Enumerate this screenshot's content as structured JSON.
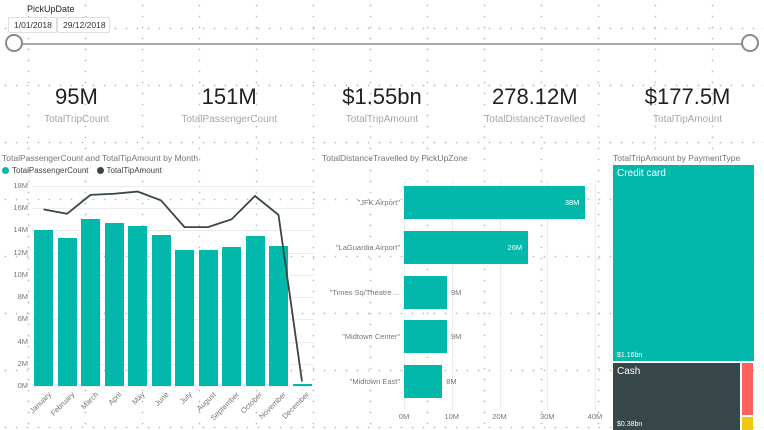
{
  "slicer": {
    "title": "PickUpDate",
    "start_date": "1/01/2018",
    "end_date": "29/12/2018"
  },
  "kpis": [
    {
      "value": "95M",
      "label": "TotalTripCount"
    },
    {
      "value": "151M",
      "label": "TotalPassengerCount"
    },
    {
      "value": "$1.55bn",
      "label": "TotalTripAmount"
    },
    {
      "value": "278.12M",
      "label": "TotalDistanceTravelled"
    },
    {
      "value": "$177.5M",
      "label": "TotalTipAmount"
    }
  ],
  "colors": {
    "teal": "#01B8AA",
    "dark": "#374649",
    "red": "#FD625E",
    "yellow": "#F2C80F"
  },
  "chart_data": [
    {
      "type": "combo-bar-line",
      "title": "TotalPassengerCount and TotalTipAmount by Month",
      "categories": [
        "January",
        "February",
        "March",
        "April",
        "May",
        "June",
        "July",
        "August",
        "September",
        "October",
        "November",
        "December"
      ],
      "series": [
        {
          "name": "TotalPassengerCount",
          "type": "bar",
          "color": "#01B8AA",
          "values": [
            14.0,
            13.3,
            15.0,
            14.7,
            14.4,
            13.6,
            12.2,
            12.2,
            12.5,
            13.5,
            12.6,
            0.2
          ]
        },
        {
          "name": "TotalTipAmount",
          "type": "line",
          "color": "#374649",
          "values": [
            15.9,
            15.5,
            17.2,
            17.3,
            17.5,
            16.7,
            14.3,
            14.3,
            15.0,
            17.1,
            15.4,
            0.4
          ]
        }
      ],
      "y_ticks": [
        "18M",
        "16M",
        "14M",
        "12M",
        "10M",
        "8M",
        "6M",
        "4M",
        "2M",
        "0M"
      ],
      "ylim": [
        0,
        18
      ],
      "value_unit": "M",
      "legend_position": "top"
    },
    {
      "type": "bar",
      "title": "TotalDistanceTravelled by PickUpZone",
      "categories": [
        "\"JFK Airport\"",
        "\"LaGuardia Airport\"",
        "\"Times Sq/Theatre ...",
        "\"Midtown Center\"",
        "\"Midtown East\""
      ],
      "values": [
        38,
        26,
        9,
        9,
        8
      ],
      "value_labels": [
        "38M",
        "26M",
        "9M",
        "9M",
        "8M"
      ],
      "x_ticks": [
        "0M",
        "10M",
        "20M",
        "30M",
        "40M"
      ],
      "xlim": [
        0,
        40
      ],
      "orientation": "horizontal"
    },
    {
      "type": "treemap",
      "title": "TotalTripAmount by PaymentType",
      "segments": [
        {
          "label": "Credit card",
          "value_label": "$1.16bn",
          "weight": 1.16,
          "color": "#01B8AA"
        },
        {
          "label": "Cash",
          "value_label": "$0.38bn",
          "weight": 0.38,
          "color": "#374649"
        },
        {
          "label": "",
          "value_label": "",
          "weight": 0.02,
          "color": "#FD625E"
        },
        {
          "label": "",
          "value_label": "",
          "weight": 0.005,
          "color": "#F2C80F"
        }
      ]
    }
  ]
}
